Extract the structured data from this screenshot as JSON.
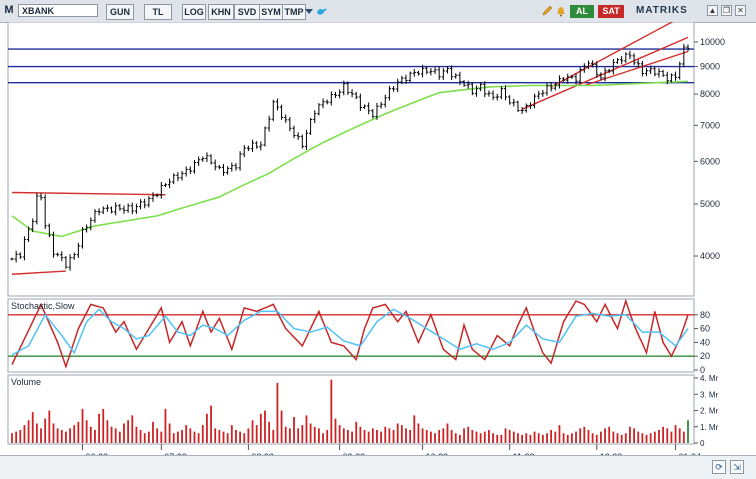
{
  "toolbar": {
    "menu_letter": "M",
    "symbol": "XBANK",
    "buttons": [
      "GUN",
      "TL",
      "LOG",
      "KHN",
      "SVD",
      "SYM",
      "TMP"
    ],
    "buy_label": "AL",
    "sell_label": "SAT",
    "brand": "MATRIKS",
    "icons": [
      "dropdown-icon",
      "bird-icon",
      "edit-icon",
      "bell-icon",
      "arrow-up-icon",
      "restore-icon",
      "close-icon"
    ]
  },
  "panels": {
    "price": {
      "label": ""
    },
    "stochastic": {
      "label": "Stochastic,Slow"
    },
    "volume": {
      "label": "Volume"
    }
  },
  "chart_data": [
    {
      "type": "candlestick",
      "title": "",
      "yscale": "log",
      "ylim": [
        3400,
        10800
      ],
      "y_ticks": [
        4000,
        5000,
        6000,
        7000,
        8000,
        9000,
        10000
      ],
      "x_ticks": [
        "06.23",
        "07.23",
        "08.23",
        "09.23",
        "10.23",
        "11.23",
        "12.23",
        "01.24"
      ],
      "x_tick_index": [
        17,
        36,
        57,
        79,
        99,
        120,
        141,
        160
      ],
      "n_bars": 164,
      "price_anchors": [
        [
          0,
          3950
        ],
        [
          2,
          4000
        ],
        [
          5,
          4700
        ],
        [
          6,
          5150
        ],
        [
          7,
          5200
        ],
        [
          8,
          4600
        ],
        [
          10,
          4050
        ],
        [
          13,
          3850
        ],
        [
          15,
          4050
        ],
        [
          17,
          4450
        ],
        [
          21,
          4850
        ],
        [
          25,
          4950
        ],
        [
          29,
          4850
        ],
        [
          32,
          5050
        ],
        [
          36,
          5350
        ],
        [
          39,
          5550
        ],
        [
          44,
          5950
        ],
        [
          46,
          6100
        ],
        [
          50,
          5800
        ],
        [
          54,
          5900
        ],
        [
          56,
          6300
        ],
        [
          60,
          6500
        ],
        [
          63,
          7700
        ],
        [
          66,
          7050
        ],
        [
          70,
          6500
        ],
        [
          73,
          7400
        ],
        [
          76,
          7800
        ],
        [
          80,
          8300
        ],
        [
          84,
          7600
        ],
        [
          87,
          7400
        ],
        [
          90,
          7900
        ],
        [
          94,
          8500
        ],
        [
          97,
          8850
        ],
        [
          100,
          8800
        ],
        [
          103,
          8700
        ],
        [
          105,
          8950
        ],
        [
          108,
          8450
        ],
        [
          111,
          8050
        ],
        [
          113,
          8300
        ],
        [
          116,
          7900
        ],
        [
          118,
          8050
        ],
        [
          120,
          7700
        ],
        [
          123,
          7500
        ],
        [
          126,
          7850
        ],
        [
          130,
          8250
        ],
        [
          133,
          8650
        ],
        [
          136,
          8500
        ],
        [
          139,
          9200
        ],
        [
          142,
          8650
        ],
        [
          145,
          9050
        ],
        [
          149,
          9500
        ],
        [
          152,
          8850
        ],
        [
          155,
          8750
        ],
        [
          158,
          8600
        ],
        [
          160,
          8700
        ],
        [
          162,
          9650
        ],
        [
          163,
          9750
        ]
      ],
      "series": [
        {
          "name": "",
          "kind": "sma",
          "color": "#7ee04c",
          "anchors": [
            [
              0,
              4750
            ],
            [
              5,
              4450
            ],
            [
              12,
              4350
            ],
            [
              20,
              4550
            ],
            [
              35,
              4750
            ],
            [
              50,
              5150
            ],
            [
              62,
              5700
            ],
            [
              75,
              6500
            ],
            [
              90,
              7350
            ],
            [
              103,
              8050
            ],
            [
              115,
              8250
            ],
            [
              125,
              8300
            ],
            [
              140,
              8300
            ],
            [
              163,
              8450
            ]
          ]
        }
      ],
      "horizontal_lines": [
        {
          "value": 9700,
          "color": "#1f2d9c"
        },
        {
          "value": 9000,
          "color": "#1f2d9c"
        },
        {
          "value": 8400,
          "color": "#1f2d9c"
        }
      ],
      "channels": [
        {
          "color": "#d32f2f",
          "lines": [
            [
              [
                0,
                5250
              ],
              [
                37,
                5200
              ]
            ],
            [
              [
                0,
                3700
              ],
              [
                13,
                3750
              ]
            ]
          ]
        },
        {
          "color": "#d32f2f",
          "lines": [
            [
              [
                123,
                7500
              ],
              [
                163,
                10200
              ]
            ],
            [
              [
                130,
                8250
              ],
              [
                163,
                11300
              ]
            ],
            [
              [
                138,
                8300
              ],
              [
                163,
                9600
              ]
            ]
          ]
        }
      ]
    },
    {
      "type": "line",
      "title": "Stochastic,Slow",
      "ylim": [
        0,
        100
      ],
      "y_ticks": [
        0,
        20,
        40,
        60,
        80
      ],
      "levels": [
        {
          "value": 80,
          "color": "#d32f2f"
        },
        {
          "value": 20,
          "color": "#2e8b3a"
        }
      ],
      "series": [
        {
          "name": "",
          "color": "#c62828",
          "anchors": [
            [
              0,
              8
            ],
            [
              3,
              45
            ],
            [
              7,
              95
            ],
            [
              11,
              40
            ],
            [
              13,
              5
            ],
            [
              16,
              60
            ],
            [
              19,
              95
            ],
            [
              22,
              90
            ],
            [
              25,
              55
            ],
            [
              27,
              70
            ],
            [
              30,
              30
            ],
            [
              33,
              60
            ],
            [
              36,
              90
            ],
            [
              38,
              40
            ],
            [
              41,
              70
            ],
            [
              43,
              35
            ],
            [
              46,
              85
            ],
            [
              48,
              55
            ],
            [
              50,
              75
            ],
            [
              53,
              30
            ],
            [
              56,
              90
            ],
            [
              59,
              85
            ],
            [
              63,
              95
            ],
            [
              66,
              60
            ],
            [
              70,
              35
            ],
            [
              74,
              85
            ],
            [
              77,
              40
            ],
            [
              80,
              35
            ],
            [
              83,
              15
            ],
            [
              85,
              60
            ],
            [
              87,
              90
            ],
            [
              90,
              95
            ],
            [
              93,
              70
            ],
            [
              95,
              85
            ],
            [
              98,
              40
            ],
            [
              101,
              80
            ],
            [
              104,
              30
            ],
            [
              107,
              15
            ],
            [
              109,
              65
            ],
            [
              111,
              30
            ],
            [
              114,
              15
            ],
            [
              117,
              50
            ],
            [
              120,
              35
            ],
            [
              122,
              65
            ],
            [
              124,
              90
            ],
            [
              126,
              55
            ],
            [
              128,
              25
            ],
            [
              130,
              10
            ],
            [
              133,
              70
            ],
            [
              136,
              100
            ],
            [
              138,
              95
            ],
            [
              141,
              70
            ],
            [
              143,
              95
            ],
            [
              146,
              60
            ],
            [
              148,
              100
            ],
            [
              150,
              65
            ],
            [
              153,
              25
            ],
            [
              155,
              85
            ],
            [
              157,
              40
            ],
            [
              159,
              20
            ],
            [
              161,
              45
            ],
            [
              163,
              80
            ]
          ]
        },
        {
          "name": "",
          "color": "#4fc3f7",
          "anchors": [
            [
              0,
              22
            ],
            [
              4,
              35
            ],
            [
              8,
              80
            ],
            [
              12,
              50
            ],
            [
              15,
              25
            ],
            [
              18,
              70
            ],
            [
              21,
              88
            ],
            [
              24,
              70
            ],
            [
              27,
              60
            ],
            [
              30,
              45
            ],
            [
              33,
              50
            ],
            [
              37,
              78
            ],
            [
              40,
              55
            ],
            [
              43,
              50
            ],
            [
              46,
              65
            ],
            [
              49,
              60
            ],
            [
              52,
              50
            ],
            [
              56,
              72
            ],
            [
              60,
              85
            ],
            [
              64,
              85
            ],
            [
              68,
              60
            ],
            [
              72,
              55
            ],
            [
              76,
              62
            ],
            [
              80,
              42
            ],
            [
              84,
              35
            ],
            [
              88,
              70
            ],
            [
              92,
              88
            ],
            [
              96,
              75
            ],
            [
              100,
              60
            ],
            [
              104,
              45
            ],
            [
              108,
              30
            ],
            [
              112,
              38
            ],
            [
              116,
              30
            ],
            [
              120,
              40
            ],
            [
              124,
              65
            ],
            [
              128,
              45
            ],
            [
              132,
              40
            ],
            [
              136,
              78
            ],
            [
              140,
              82
            ],
            [
              144,
              78
            ],
            [
              148,
              80
            ],
            [
              152,
              55
            ],
            [
              156,
              55
            ],
            [
              160,
              35
            ],
            [
              163,
              60
            ]
          ]
        }
      ]
    },
    {
      "type": "bar",
      "title": "Volume",
      "ylim": [
        0,
        4
      ],
      "y_ticks": [
        0,
        1,
        2,
        3,
        4
      ],
      "y_tick_labels": [
        "0",
        "1. Mr",
        "2. Mr",
        "3. Mr",
        "4. Mr"
      ],
      "bar_color": "#cc2222",
      "last_bar_color": "#2e8b3a",
      "values": [
        0.6,
        0.7,
        0.8,
        1.1,
        1.4,
        1.9,
        1.2,
        0.9,
        1.5,
        2.0,
        1.2,
        0.9,
        0.8,
        0.7,
        0.9,
        1.1,
        1.3,
        2.1,
        1.4,
        1.0,
        0.8,
        1.8,
        2.1,
        1.4,
        1.0,
        0.9,
        0.7,
        1.2,
        1.4,
        1.7,
        1.0,
        0.8,
        0.6,
        0.7,
        1.3,
        0.9,
        0.7,
        2.1,
        1.2,
        0.6,
        0.7,
        0.8,
        1.1,
        0.9,
        0.7,
        0.6,
        1.1,
        1.8,
        2.3,
        0.9,
        0.8,
        0.7,
        0.6,
        1.1,
        0.8,
        0.7,
        0.6,
        0.9,
        1.4,
        1.1,
        1.8,
        2.0,
        1.3,
        0.8,
        3.7,
        2.0,
        1.0,
        0.9,
        1.6,
        0.9,
        1.1,
        1.7,
        1.2,
        1.0,
        0.9,
        0.6,
        0.8,
        3.9,
        1.5,
        1.1,
        0.9,
        0.8,
        0.7,
        1.3,
        1.0,
        0.8,
        0.7,
        0.9,
        0.8,
        0.7,
        1.0,
        0.9,
        0.8,
        1.2,
        1.1,
        0.9,
        0.8,
        1.7,
        1.2,
        0.9,
        0.8,
        0.7,
        0.6,
        0.8,
        0.9,
        1.2,
        0.8,
        0.6,
        0.5,
        0.9,
        1.0,
        0.8,
        0.7,
        0.6,
        0.7,
        0.8,
        0.6,
        0.5,
        0.5,
        0.9,
        0.8,
        0.7,
        0.6,
        0.5,
        0.6,
        0.5,
        0.7,
        0.6,
        0.5,
        0.6,
        0.8,
        0.7,
        1.1,
        0.6,
        0.5,
        0.6,
        0.7,
        0.9,
        1.0,
        0.8,
        0.6,
        0.5,
        0.7,
        0.9,
        1.0,
        0.7,
        0.6,
        0.5,
        0.6,
        1.0,
        0.9,
        0.7,
        0.6,
        0.5,
        0.6,
        0.7,
        0.8,
        1.0,
        0.9,
        0.7,
        1.1,
        0.9,
        0.7,
        1.4
      ]
    }
  ]
}
